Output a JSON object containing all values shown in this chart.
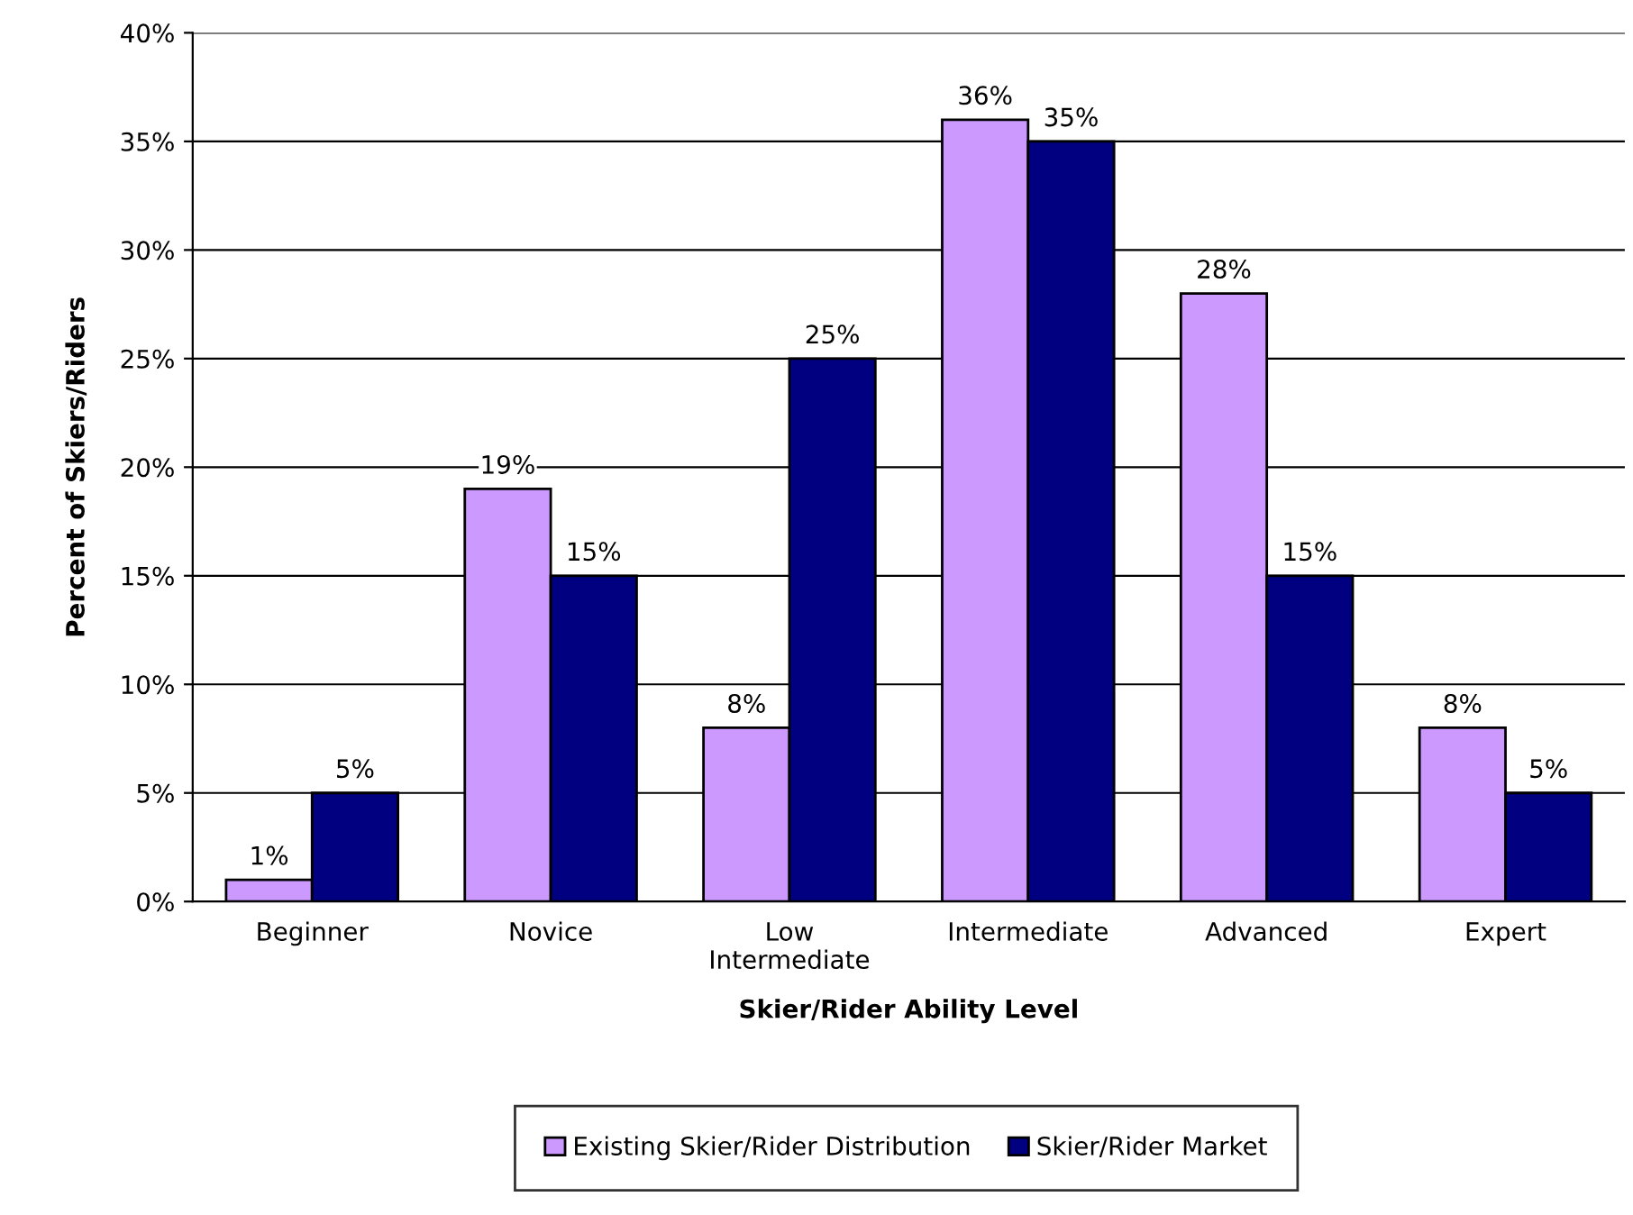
{
  "chart_data": {
    "type": "bar",
    "xlabel": "Skier/Rider Ability Level",
    "ylabel": "Percent of Skiers/Riders",
    "categories": [
      "Beginner",
      "Novice",
      "Low\nIntermediate",
      "Intermediate",
      "Advanced",
      "Expert"
    ],
    "series": [
      {
        "name": "Existing Skier/Rider Distribution",
        "color": "#cc99ff",
        "values": [
          1,
          19,
          8,
          36,
          28,
          8
        ],
        "value_labels": [
          "1%",
          "19%",
          "8%",
          "36%",
          "28%",
          "8%"
        ]
      },
      {
        "name": "Skier/Rider Market",
        "color": "#000080",
        "values": [
          5,
          15,
          25,
          35,
          15,
          5
        ],
        "value_labels": [
          "5%",
          "15%",
          "25%",
          "35%",
          "15%",
          "5%"
        ]
      }
    ],
    "ylim": [
      0,
      40
    ],
    "yticks": [
      {
        "value": 0,
        "label": "0%"
      },
      {
        "value": 5,
        "label": "5%"
      },
      {
        "value": 10,
        "label": "10%"
      },
      {
        "value": 15,
        "label": "15%"
      },
      {
        "value": 20,
        "label": "20%"
      },
      {
        "value": 25,
        "label": "25%"
      },
      {
        "value": 30,
        "label": "30%"
      },
      {
        "value": 35,
        "label": "35%"
      },
      {
        "value": 40,
        "label": "40%"
      }
    ],
    "grid": "y",
    "legend": "bottom"
  }
}
